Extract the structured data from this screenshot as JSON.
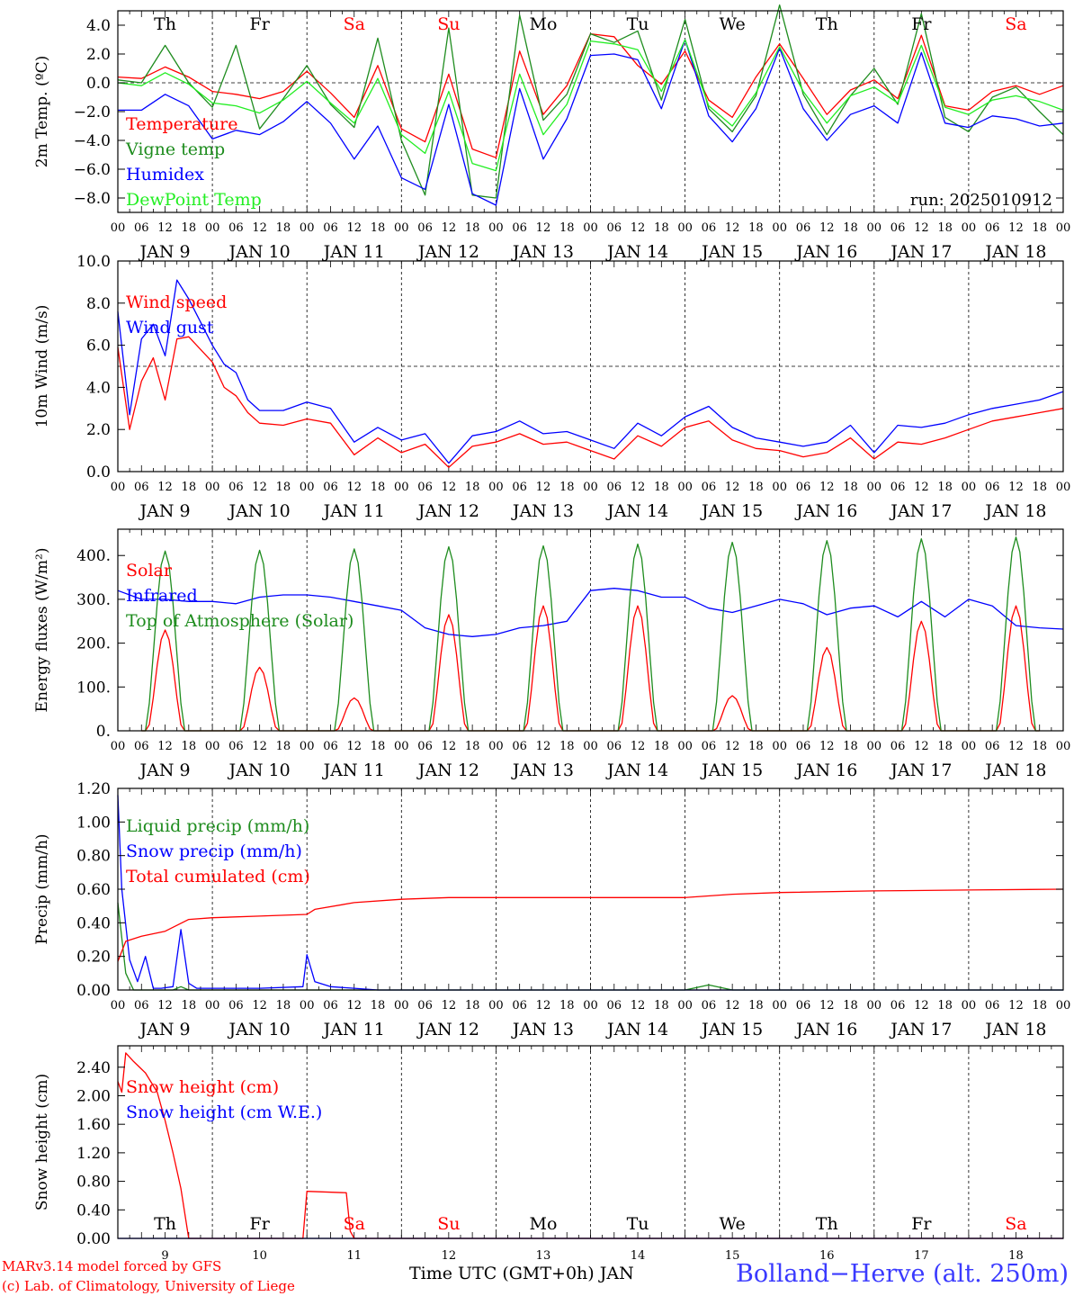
{
  "colors": {
    "red": "#ff0000",
    "darkgreen": "#1e8c1e",
    "blue": "#0000ff",
    "lightgreen": "#22ee22",
    "black": "#000000",
    "station": "#3a3aff"
  },
  "days": {
    "weekday": [
      "Th",
      "Fr",
      "Sa",
      "Su",
      "Mo",
      "Tu",
      "We",
      "Th",
      "Fr",
      "Sa"
    ],
    "weekend_color": [
      "black",
      "black",
      "red",
      "red",
      "black",
      "black",
      "black",
      "black",
      "black",
      "red"
    ],
    "date": [
      "JAN 9",
      "JAN 10",
      "JAN 11",
      "JAN 12",
      "JAN 13",
      "JAN 14",
      "JAN 15",
      "JAN 16",
      "JAN 17",
      "JAN 18"
    ],
    "daynum": [
      "9",
      "10",
      "11",
      "12",
      "13",
      "14",
      "15",
      "16",
      "17",
      "18"
    ],
    "hours": [
      "00",
      "06",
      "12",
      "18"
    ],
    "final_hour": "00"
  },
  "footer": {
    "credit1": "MARv3.14 model forced by GFS",
    "credit2": "(c) Lab. of Climatology, University of Liege",
    "xtitle": "Time UTC (GMT+0h) JAN",
    "station": "Bolland−Herve (alt. 250m)"
  },
  "chart_data": [
    {
      "type": "line",
      "ylabel": "2m Temp. (ºC)",
      "ylim": [
        -9,
        5
      ],
      "yticks": [
        4,
        2,
        0,
        -2,
        -4,
        -6,
        -8
      ],
      "ytick_labels": [
        "4.0",
        "2.0",
        "0.0",
        "−2.0",
        "−4.0",
        "−6.0",
        "−8.0"
      ],
      "ref_line": 0,
      "run_label": "run: 2025010912",
      "x_unit": "hours since JAN 9 00 UTC",
      "series": [
        {
          "name": "Temperature",
          "color": "red",
          "x": [
            0,
            6,
            12,
            18,
            24,
            30,
            36,
            42,
            48,
            54,
            60,
            66,
            72,
            78,
            84,
            90,
            96,
            102,
            108,
            114,
            120,
            126,
            132,
            138,
            144,
            150,
            156,
            162,
            168,
            174,
            180,
            186,
            192,
            198,
            204,
            210,
            216,
            222,
            228,
            234,
            240
          ],
          "y": [
            0.4,
            0.3,
            1.1,
            0.4,
            -0.6,
            -0.8,
            -1.1,
            -0.6,
            0.8,
            -0.7,
            -2.4,
            1.2,
            -3.2,
            -4.1,
            0.6,
            -4.6,
            -5.2,
            2.2,
            -2.2,
            -0.2,
            3.4,
            3.2,
            1.2,
            -0.1,
            2.2,
            -1.2,
            -2.4,
            0.4,
            2.7,
            0.3,
            -2.2,
            -0.5,
            0.2,
            -1.1,
            3.3,
            -1.6,
            -1.9,
            -0.6,
            -0.2,
            -0.8,
            -0.2
          ]
        },
        {
          "name": "Vigne temp",
          "color": "darkgreen",
          "x": [
            0,
            6,
            12,
            18,
            24,
            30,
            36,
            42,
            48,
            54,
            60,
            66,
            72,
            78,
            84,
            90,
            96,
            102,
            108,
            114,
            120,
            126,
            132,
            138,
            144,
            150,
            156,
            162,
            168,
            174,
            180,
            186,
            192,
            198,
            204,
            210,
            216,
            222,
            228,
            234,
            240
          ],
          "y": [
            0.2,
            0.0,
            2.6,
            0.0,
            -1.7,
            2.6,
            -3.2,
            -1.1,
            1.2,
            -1.5,
            -3.1,
            3.1,
            -4.0,
            -7.8,
            3.8,
            -7.8,
            -8.0,
            4.7,
            -2.6,
            -0.8,
            3.4,
            2.8,
            3.6,
            -1.2,
            4.4,
            -1.8,
            -3.4,
            -0.9,
            5.4,
            -0.8,
            -3.6,
            -0.9,
            1.0,
            -1.5,
            4.8,
            -2.4,
            -3.4,
            -1.0,
            -0.3,
            -2.0,
            -3.6
          ]
        },
        {
          "name": "Humidex",
          "color": "blue",
          "x": [
            0,
            6,
            12,
            18,
            24,
            30,
            36,
            42,
            48,
            54,
            60,
            66,
            72,
            78,
            84,
            90,
            96,
            102,
            108,
            114,
            120,
            126,
            132,
            138,
            144,
            150,
            156,
            162,
            168,
            174,
            180,
            186,
            192,
            198,
            204,
            210,
            216,
            222,
            228,
            234,
            240
          ],
          "y": [
            -1.9,
            -1.9,
            -0.8,
            -1.6,
            -3.9,
            -3.3,
            -3.6,
            -2.7,
            -1.3,
            -2.8,
            -5.3,
            -3.0,
            -6.6,
            -7.4,
            -1.5,
            -7.7,
            -8.5,
            -0.4,
            -5.3,
            -2.5,
            1.9,
            2.0,
            1.6,
            -1.8,
            3.0,
            -2.3,
            -4.1,
            -1.8,
            2.4,
            -1.8,
            -4.0,
            -2.2,
            -1.6,
            -2.8,
            2.1,
            -2.8,
            -3.1,
            -2.3,
            -2.5,
            -3.0,
            -2.8
          ]
        },
        {
          "name": "DewPoint Temp",
          "color": "lightgreen",
          "x": [
            0,
            6,
            12,
            18,
            24,
            30,
            36,
            42,
            48,
            54,
            60,
            66,
            72,
            78,
            84,
            90,
            96,
            102,
            108,
            114,
            120,
            126,
            132,
            138,
            144,
            150,
            156,
            162,
            168,
            174,
            180,
            186,
            192,
            198,
            204,
            210,
            216,
            222,
            228,
            234,
            240
          ],
          "y": [
            0.0,
            -0.2,
            0.7,
            -0.1,
            -1.4,
            -1.6,
            -2.1,
            -1.2,
            0.1,
            -1.4,
            -2.8,
            0.3,
            -3.6,
            -4.9,
            -0.6,
            -5.6,
            -6.1,
            0.6,
            -3.6,
            -1.5,
            2.9,
            2.7,
            2.3,
            -0.6,
            3.0,
            -1.6,
            -3.0,
            -0.7,
            2.5,
            -0.6,
            -2.8,
            -0.9,
            -0.3,
            -1.4,
            2.6,
            -1.7,
            -2.2,
            -1.2,
            -0.9,
            -1.3,
            -1.9
          ]
        }
      ]
    },
    {
      "type": "line",
      "ylabel": "10m Wind (m/s)",
      "ylim": [
        0,
        10
      ],
      "yticks": [
        0,
        2,
        4,
        6,
        8,
        10
      ],
      "ytick_labels": [
        "0.0",
        "2.0",
        "4.0",
        "6.0",
        "8.0",
        "10.0"
      ],
      "ref_line": 5,
      "x_unit": "hours since JAN 9 00 UTC",
      "series": [
        {
          "name": "Wind speed",
          "color": "red",
          "x": [
            0,
            3,
            6,
            9,
            12,
            15,
            18,
            21,
            24,
            27,
            30,
            33,
            36,
            42,
            48,
            54,
            60,
            66,
            72,
            78,
            84,
            90,
            96,
            102,
            108,
            114,
            120,
            126,
            132,
            138,
            144,
            150,
            156,
            162,
            168,
            174,
            180,
            186,
            192,
            198,
            204,
            210,
            216,
            222,
            228,
            234,
            240
          ],
          "y": [
            5.9,
            2.0,
            4.3,
            5.4,
            3.4,
            6.3,
            6.4,
            5.8,
            5.2,
            4.0,
            3.6,
            2.8,
            2.3,
            2.2,
            2.5,
            2.3,
            0.8,
            1.6,
            0.9,
            1.3,
            0.2,
            1.2,
            1.4,
            1.8,
            1.3,
            1.4,
            1.0,
            0.6,
            1.7,
            1.2,
            2.1,
            2.4,
            1.5,
            1.1,
            1.0,
            0.7,
            0.9,
            1.6,
            0.6,
            1.4,
            1.3,
            1.6,
            2.0,
            2.4,
            2.6,
            2.8,
            3.0
          ]
        },
        {
          "name": "Wind gust",
          "color": "blue",
          "x": [
            0,
            3,
            6,
            9,
            12,
            15,
            18,
            21,
            24,
            27,
            30,
            33,
            36,
            42,
            48,
            54,
            60,
            66,
            72,
            78,
            84,
            90,
            96,
            102,
            108,
            114,
            120,
            126,
            132,
            138,
            144,
            150,
            156,
            162,
            168,
            174,
            180,
            186,
            192,
            198,
            204,
            210,
            216,
            222,
            228,
            234,
            240
          ],
          "y": [
            7.6,
            2.7,
            6.3,
            7.0,
            5.5,
            9.1,
            8.2,
            7.1,
            6.0,
            5.1,
            4.7,
            3.4,
            2.9,
            2.9,
            3.3,
            3.0,
            1.4,
            2.1,
            1.5,
            1.8,
            0.4,
            1.7,
            1.9,
            2.4,
            1.8,
            1.9,
            1.5,
            1.1,
            2.3,
            1.7,
            2.6,
            3.1,
            2.1,
            1.6,
            1.4,
            1.2,
            1.4,
            2.2,
            0.9,
            2.2,
            2.1,
            2.3,
            2.7,
            3.0,
            3.2,
            3.4,
            3.8
          ]
        }
      ]
    },
    {
      "type": "line",
      "ylabel": "Energy fluxes (W/m²)",
      "ylim": [
        0,
        460
      ],
      "yticks": [
        0,
        100,
        200,
        300,
        400
      ],
      "ytick_labels": [
        "0.",
        "100.",
        "200.",
        "300.",
        "400."
      ],
      "x_unit": "hours since JAN 9 00 UTC",
      "series": [
        {
          "name": "Solar",
          "color": "red",
          "peak_hour_of_day": 12,
          "half_width_hours": 4.5,
          "daily_peak": [
            230,
            145,
            75,
            265,
            285,
            285,
            80,
            190,
            250,
            285
          ]
        },
        {
          "name": "Infrared",
          "color": "blue",
          "x": [
            0,
            6,
            12,
            18,
            24,
            30,
            36,
            42,
            48,
            54,
            60,
            66,
            72,
            78,
            84,
            90,
            96,
            102,
            108,
            114,
            120,
            126,
            132,
            138,
            144,
            150,
            156,
            162,
            168,
            174,
            180,
            186,
            192,
            198,
            204,
            210,
            216,
            222,
            228,
            234,
            240
          ],
          "y": [
            320,
            300,
            300,
            295,
            295,
            290,
            305,
            310,
            310,
            305,
            295,
            285,
            275,
            235,
            220,
            215,
            220,
            235,
            240,
            250,
            320,
            325,
            320,
            305,
            305,
            280,
            270,
            285,
            300,
            290,
            265,
            280,
            285,
            260,
            295,
            260,
            300,
            285,
            240,
            235,
            232
          ]
        },
        {
          "name": "Top of Atmosphere (Solar)",
          "color": "darkgreen",
          "peak_hour_of_day": 12,
          "half_width_hours": 5,
          "daily_peak": [
            410,
            412,
            415,
            420,
            422,
            426,
            430,
            434,
            438,
            442
          ]
        }
      ]
    },
    {
      "type": "line",
      "ylabel": "Precip (mm/h)",
      "ylim": [
        0,
        1.2
      ],
      "yticks": [
        0,
        0.2,
        0.4,
        0.6,
        0.8,
        1.0,
        1.2
      ],
      "ytick_labels": [
        "0.00",
        "0.20",
        "0.40",
        "0.60",
        "0.80",
        "1.00",
        "1.20"
      ],
      "x_unit": "hours since JAN 9 00 UTC",
      "series": [
        {
          "name": "Liquid precip (mm/h)",
          "color": "darkgreen",
          "x": [
            0,
            2,
            4,
            8,
            14,
            16,
            18,
            48,
            144,
            150,
            156,
            240
          ],
          "y": [
            0.52,
            0.1,
            0.0,
            0.0,
            0.0,
            0.02,
            0.0,
            0.0,
            0.0,
            0.03,
            0.0,
            0.0
          ]
        },
        {
          "name": "Snow precip (mm/h)",
          "color": "blue",
          "x": [
            0,
            1,
            3,
            5,
            7,
            9,
            11,
            14,
            16,
            18,
            20,
            24,
            36,
            47,
            48,
            50,
            54,
            60,
            66,
            72,
            144,
            240
          ],
          "y": [
            1.16,
            0.6,
            0.18,
            0.05,
            0.2,
            0.01,
            0.01,
            0.02,
            0.36,
            0.04,
            0.01,
            0.01,
            0.01,
            0.02,
            0.21,
            0.05,
            0.02,
            0.01,
            0.0,
            0.0,
            0.0,
            0.0
          ]
        },
        {
          "name": "Total cumulated (cm)",
          "color": "red",
          "x": [
            0,
            2,
            6,
            12,
            18,
            24,
            36,
            48,
            50,
            60,
            72,
            84,
            96,
            120,
            144,
            156,
            168,
            192,
            216,
            240
          ],
          "y": [
            0.17,
            0.29,
            0.32,
            0.35,
            0.42,
            0.43,
            0.44,
            0.45,
            0.48,
            0.52,
            0.54,
            0.55,
            0.55,
            0.55,
            0.55,
            0.57,
            0.58,
            0.59,
            0.595,
            0.6
          ]
        }
      ]
    },
    {
      "type": "line",
      "ylabel": "Snow height (cm)",
      "ylim": [
        0,
        2.7
      ],
      "yticks": [
        0,
        0.4,
        0.8,
        1.2,
        1.6,
        2.0,
        2.4
      ],
      "ytick_labels": [
        "0.00",
        "0.40",
        "0.80",
        "1.20",
        "1.60",
        "2.00",
        "2.40"
      ],
      "x_unit": "hours since JAN 9 00 UTC",
      "series": [
        {
          "name": "Snow height (cm)",
          "color": "red",
          "x": [
            0,
            1,
            2,
            4,
            7,
            10,
            12,
            14,
            16,
            18,
            24,
            46,
            47,
            48,
            58,
            59,
            60,
            240
          ],
          "y": [
            2.2,
            2.05,
            2.6,
            2.48,
            2.32,
            2.05,
            1.65,
            1.2,
            0.7,
            0.0,
            0.0,
            0.0,
            0.0,
            0.66,
            0.64,
            0.1,
            0.0,
            0.0
          ]
        },
        {
          "name": "Snow height (cm W.E.)",
          "color": "blue",
          "x": [
            0,
            240
          ],
          "y": [
            0,
            0
          ]
        }
      ]
    }
  ]
}
